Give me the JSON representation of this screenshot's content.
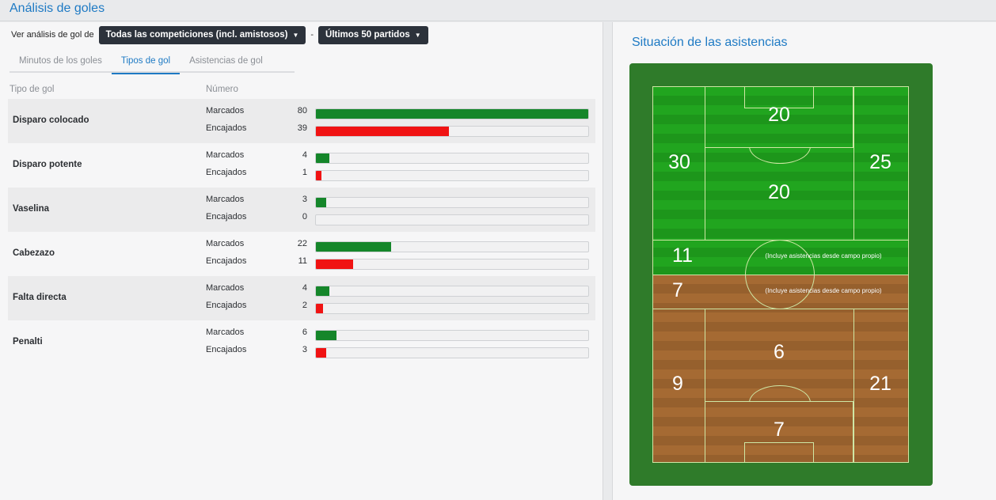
{
  "page_title": "Análisis de goles",
  "filter": {
    "label": "Ver análisis de gol de",
    "competition": "Todas las competiciones (incl. amistosos)",
    "separator": "-",
    "range": "Últimos 50 partidos"
  },
  "tabs": [
    {
      "label": "Minutos de los goles",
      "active": false
    },
    {
      "label": "Tipos de gol",
      "active": true
    },
    {
      "label": "Asistencias de gol",
      "active": false
    }
  ],
  "table": {
    "col_type": "Tipo de gol",
    "col_number": "Número",
    "scored_label": "Marcados",
    "conceded_label": "Encajados",
    "max_value": 80,
    "rows": [
      {
        "type": "Disparo colocado",
        "scored": 80,
        "conceded": 39
      },
      {
        "type": "Disparo potente",
        "scored": 4,
        "conceded": 1
      },
      {
        "type": "Vaselina",
        "scored": 3,
        "conceded": 0
      },
      {
        "type": "Cabezazo",
        "scored": 22,
        "conceded": 11
      },
      {
        "type": "Falta directa",
        "scored": 4,
        "conceded": 2
      },
      {
        "type": "Penalti",
        "scored": 6,
        "conceded": 3
      }
    ]
  },
  "assists": {
    "title": "Situación de las asistencias",
    "note": "(Incluye asistencias desde campo propio)",
    "own_half": {
      "left_wing": 30,
      "right_wing": 25,
      "box": 20,
      "center": 20,
      "midfield": 11
    },
    "opp_half": {
      "midfield": 7,
      "left_wing": 9,
      "right_wing": 21,
      "center": 6,
      "box": 7
    }
  },
  "colors": {
    "scored": "#15862a",
    "conceded": "#f01313",
    "accent": "#1e7ac4"
  }
}
